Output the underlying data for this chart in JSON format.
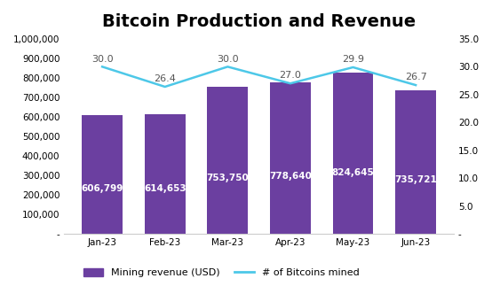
{
  "title": "Bitcoin Production and Revenue",
  "categories": [
    "Jan-23",
    "Feb-23",
    "Mar-23",
    "Apr-23",
    "May-23",
    "Jun-23"
  ],
  "bar_values": [
    606799,
    614653,
    753750,
    778640,
    824645,
    735721
  ],
  "bar_labels": [
    "606,799",
    "614,653",
    "753,750",
    "778,640",
    "824,645",
    "735,721"
  ],
  "line_values": [
    30.0,
    26.4,
    30.0,
    27.0,
    29.9,
    26.7
  ],
  "line_labels": [
    "30.0",
    "26.4",
    "30.0",
    "27.0",
    "29.9",
    "26.7"
  ],
  "bar_color": "#6B3FA0",
  "line_color": "#4DC8E8",
  "bar_ylim": [
    0,
    1000000
  ],
  "bar_yticks": [
    0,
    100000,
    200000,
    300000,
    400000,
    500000,
    600000,
    700000,
    800000,
    900000,
    1000000
  ],
  "bar_yticklabels": [
    "-",
    "100,000",
    "200,000",
    "300,000",
    "400,000",
    "500,000",
    "600,000",
    "700,000",
    "800,000",
    "900,000",
    "1,000,000"
  ],
  "line_ylim": [
    0,
    35
  ],
  "line_yticks": [
    0,
    5.0,
    10.0,
    15.0,
    20.0,
    25.0,
    30.0,
    35.0
  ],
  "line_yticklabels": [
    "-",
    "5.0",
    "10.0",
    "15.0",
    "20.0",
    "25.0",
    "30.0",
    "35.0"
  ],
  "legend_bar": "Mining revenue (USD)",
  "legend_line": "# of Bitcoins mined",
  "title_fontsize": 14,
  "bar_label_fontsize": 7.5,
  "line_label_fontsize": 8,
  "tick_fontsize": 7.5,
  "background_color": "#ffffff"
}
